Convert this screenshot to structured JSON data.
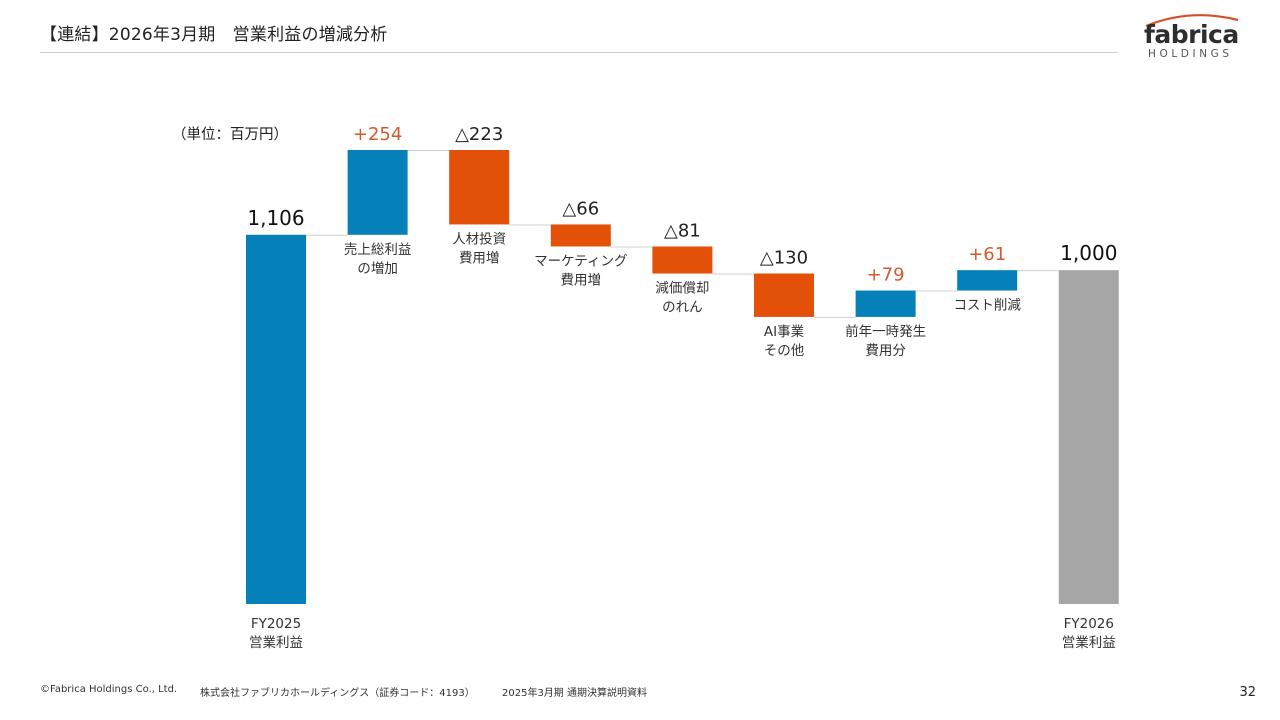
{
  "header": {
    "title": "【連結】2026年3月期　営業利益の増減分析"
  },
  "logo": {
    "wordmark": "fabrica",
    "subtitle": "HOLDINGS",
    "arc_color": "#d2512c"
  },
  "colors": {
    "total_start": "#0580b8",
    "increase": "#0580b8",
    "decrease": "#e35008",
    "total_end": "#a6a6a6",
    "increase_label": "#d05a2e",
    "decrease_label": "#222222",
    "total_label": "#111111"
  },
  "chart_data": {
    "type": "waterfall",
    "unit_label": "（単位：百万円）",
    "ylim": [
      0,
      1360
    ],
    "categories": [
      {
        "label_lines": [
          "FY2025",
          "営業利益"
        ],
        "value_label": "1,106",
        "kind": "total",
        "value": 1106
      },
      {
        "label_lines": [
          "売上総利益",
          "の増加"
        ],
        "value_label": "+254",
        "kind": "increase",
        "value": 254
      },
      {
        "label_lines": [
          "人材投資",
          "費用増"
        ],
        "value_label": "△223",
        "kind": "decrease",
        "value": -223
      },
      {
        "label_lines": [
          "マーケティング",
          "費用増"
        ],
        "value_label": "△66",
        "kind": "decrease",
        "value": -66
      },
      {
        "label_lines": [
          "減価償却",
          "のれん"
        ],
        "value_label": "△81",
        "kind": "decrease",
        "value": -81
      },
      {
        "label_lines": [
          "AI事業",
          "その他"
        ],
        "value_label": "△130",
        "kind": "decrease",
        "value": -130
      },
      {
        "label_lines": [
          "前年一時発生",
          "費用分"
        ],
        "value_label": "+79",
        "kind": "increase",
        "value": 79
      },
      {
        "label_lines": [
          "コスト削減"
        ],
        "value_label": "+61",
        "kind": "increase",
        "value": 61
      },
      {
        "label_lines": [
          "FY2026",
          "営業利益"
        ],
        "value_label": "1,000",
        "kind": "total",
        "value": 1000
      }
    ]
  },
  "footer": {
    "copyright": "©Fabrica Holdings Co., Ltd.",
    "company": "株式会社ファブリカホールディングス（証券コード：4193）",
    "document": "2025年3月期 通期決算説明資料",
    "page_number": "32"
  }
}
